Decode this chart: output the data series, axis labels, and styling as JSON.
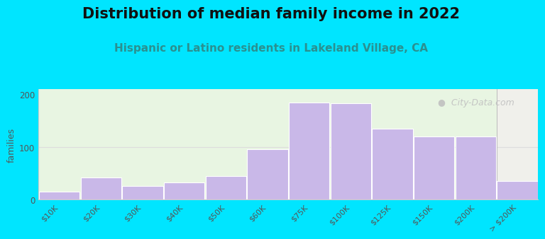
{
  "title": "Distribution of median family income in 2022",
  "subtitle": "Hispanic or Latino residents in Lakeland Village, CA",
  "ylabel": "families",
  "categories": [
    "$10K",
    "$20K",
    "$30K",
    "$40K",
    "$50K",
    "$60K",
    "$75K",
    "$100K",
    "$125K",
    "$150K",
    "$200K",
    "> $200K"
  ],
  "values": [
    15,
    42,
    25,
    32,
    45,
    95,
    185,
    183,
    135,
    120,
    120,
    35
  ],
  "bar_color": "#c9b8e8",
  "bar_edgecolor": "#ffffff",
  "background_outer": "#00e5ff",
  "background_plot_left": "#e8f5e2",
  "background_plot_right": "#f0f0eb",
  "yticks": [
    0,
    100,
    200
  ],
  "ylim": [
    0,
    210
  ],
  "title_fontsize": 15,
  "subtitle_fontsize": 11,
  "ylabel_fontsize": 9,
  "watermark": "City-Data.com",
  "watermark_icon": "●"
}
